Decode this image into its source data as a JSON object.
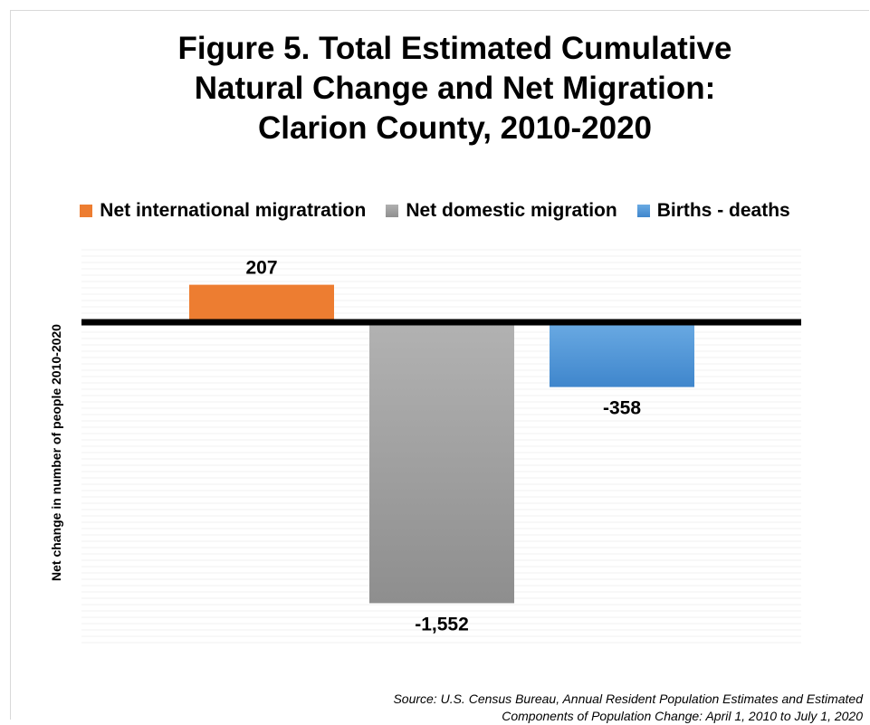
{
  "chart_data": {
    "type": "bar",
    "title": "Figure 5. Total Estimated Cumulative Natural Change and Net Migration: Clarion County, 2010-2020",
    "title_lines": [
      "Figure 5. Total Estimated Cumulative",
      "Natural Change and Net Migration:",
      "Clarion County, 2010-2020"
    ],
    "ylabel": "Net change in number of people 2010-2020",
    "xlabel": "",
    "categories": [
      "Net international migratration",
      "Net domestic migration",
      "Births  - deaths"
    ],
    "values": [
      207,
      -1552,
      -358
    ],
    "value_labels": [
      "207",
      "-1,552",
      "-358"
    ],
    "colors": [
      "#ed7d31",
      "#a5a5a5",
      "#5b9bd5"
    ],
    "legend": {
      "position": "top",
      "entries": [
        {
          "label": "Net international migratration",
          "color": "#ed7d31"
        },
        {
          "label": "Net domestic migration",
          "color": "#a5a5a5"
        },
        {
          "label": "Births  - deaths",
          "color": "#5b9bd5"
        }
      ]
    },
    "ylim": [
      -1800,
      400
    ],
    "grid": true,
    "source_lines": [
      "Source: U.S. Census Bureau, Annual Resident Population Estimates and Estimated",
      "Components of Population Change: April 1, 2010 to July 1, 2020"
    ]
  }
}
